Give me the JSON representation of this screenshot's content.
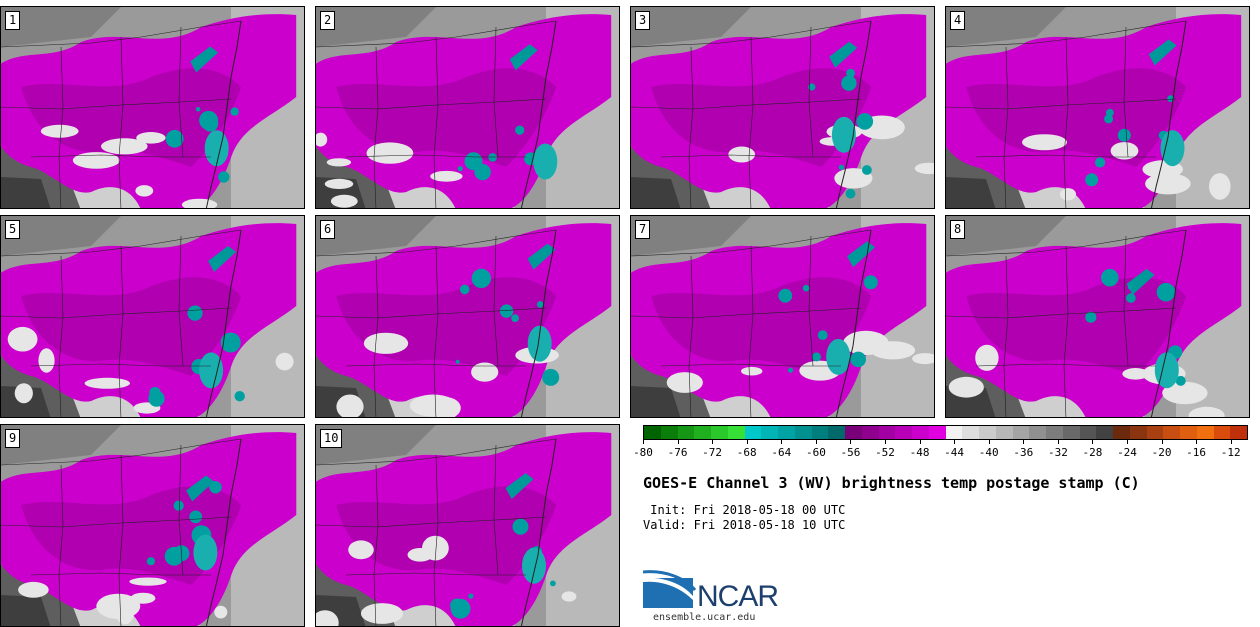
{
  "panels": [
    {
      "label": "1"
    },
    {
      "label": "2"
    },
    {
      "label": "3"
    },
    {
      "label": "4"
    },
    {
      "label": "5"
    },
    {
      "label": "6"
    },
    {
      "label": "7"
    },
    {
      "label": "8"
    },
    {
      "label": "9"
    },
    {
      "label": "10"
    }
  ],
  "colorbar": {
    "colors": [
      "#006400",
      "#0b7d0b",
      "#159615",
      "#1faf1f",
      "#2ac82a",
      "#36e036",
      "#00c8c8",
      "#00b5b5",
      "#00a3a3",
      "#009090",
      "#007e7e",
      "#006a6a",
      "#7a007a",
      "#8f008f",
      "#a300a3",
      "#b800b8",
      "#cc00cc",
      "#e000e0",
      "#f2f2f2",
      "#dedede",
      "#cbcbcb",
      "#b7b7b7",
      "#a4a4a4",
      "#909090",
      "#7d7d7d",
      "#696969",
      "#555555",
      "#424242",
      "#6b2a0d",
      "#8a3410",
      "#a84012",
      "#c84e12",
      "#e05e10",
      "#f07010",
      "#d94c0c",
      "#c0300a"
    ],
    "min": -80,
    "max": -10,
    "ticks": [
      "-80",
      "-76",
      "-72",
      "-68",
      "-64",
      "-60",
      "-56",
      "-52",
      "-48",
      "-44",
      "-40",
      "-36",
      "-32",
      "-28",
      "-24",
      "-20",
      "-16",
      "-12"
    ]
  },
  "title": "GOES-E Channel 3 (WV) brightness temp postage stamp (C)",
  "init": " Init: Fri 2018-05-18 00 UTC",
  "valid": "Valid: Fri 2018-05-18 10 UTC",
  "logo": {
    "name": "NCAR",
    "url": "ensemble.ucar.edu"
  }
}
